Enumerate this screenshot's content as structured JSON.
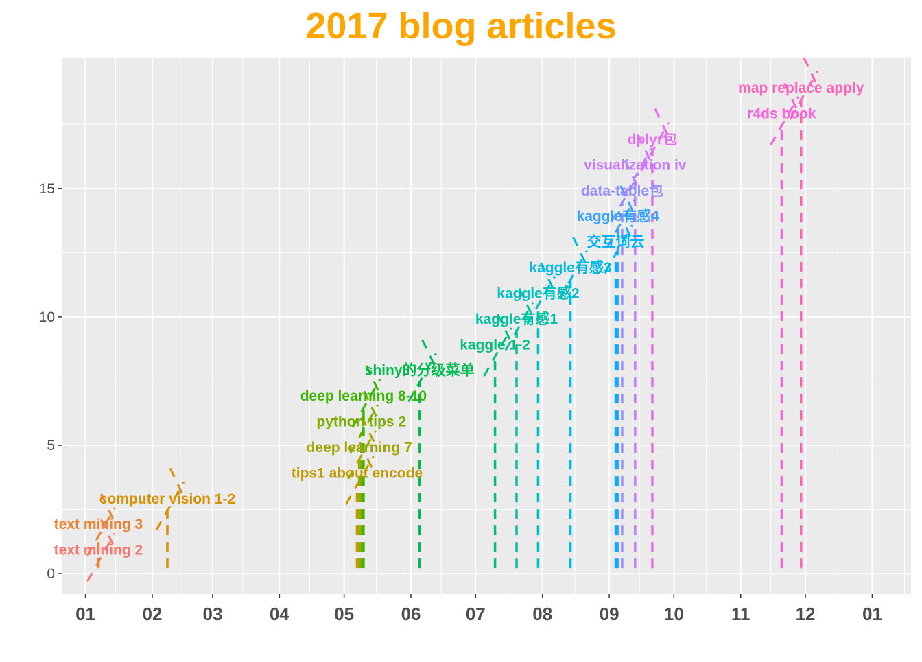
{
  "chart_data": {
    "type": "scatter",
    "title": "2017 blog articles",
    "xlabel": "",
    "ylabel": "",
    "title_color": "#FFA500",
    "panel_background": "#EBEBEB",
    "grid": true,
    "legend": "none",
    "xlim": [
      "2016-12-21",
      "2018-01-19"
    ],
    "ylim": [
      -0.8,
      20.1
    ],
    "y_ticks": [
      0,
      5,
      10,
      15
    ],
    "y_tick_labels": [
      "0",
      "5",
      "10",
      "15"
    ],
    "x_ticks": [
      "2017-01-01",
      "2017-02-01",
      "2017-03-01",
      "2017-04-01",
      "2017-05-01",
      "2017-06-01",
      "2017-07-01",
      "2017-08-01",
      "2017-09-01",
      "2017-10-01",
      "2017-11-01",
      "2017-12-01",
      "2018-01-01"
    ],
    "x_tick_labels": [
      "01",
      "02",
      "03",
      "04",
      "05",
      "06",
      "07",
      "08",
      "09",
      "10",
      "11",
      "12",
      "01"
    ],
    "x_minor_ticks": [
      "2017-01-15",
      "2017-02-14",
      "2017-03-15",
      "2017-04-15",
      "2017-05-16",
      "2017-06-15",
      "2017-07-16",
      "2017-08-16",
      "2017-09-15",
      "2017-10-16",
      "2017-11-15",
      "2017-12-16",
      "2018-01-16"
    ],
    "y_minor_ticks": [
      2.5,
      7.5,
      12.5,
      17.5
    ],
    "points": [
      {
        "label": "text mining 2",
        "date": "2017-01-07",
        "y": 1,
        "color": "#F8766D"
      },
      {
        "label": "text mining 3",
        "date": "2017-01-07",
        "y": 2,
        "color": "#EA8331"
      },
      {
        "label": "computer vision 1-2",
        "date": "2017-02-08",
        "y": 3,
        "color": "#D89000"
      },
      {
        "label": "tips1 about encode",
        "date": "2017-05-07",
        "y": 4,
        "color": "#C09B00"
      },
      {
        "label": "deep learning 7",
        "date": "2017-05-08",
        "y": 5,
        "color": "#A3A500"
      },
      {
        "label": "python tips 2",
        "date": "2017-05-09",
        "y": 6,
        "color": "#7CAE00"
      },
      {
        "label": "deep learning 8-10",
        "date": "2017-05-10",
        "y": 7,
        "color": "#39B600"
      },
      {
        "label": "shiny的分级菜单",
        "date": "2017-06-05",
        "y": 8,
        "color": "#00BB4E"
      },
      {
        "label": "kaggle 1-2",
        "date": "2017-07-10",
        "y": 9,
        "color": "#00BF7D"
      },
      {
        "label": "kaggle有感1",
        "date": "2017-07-20",
        "y": 10,
        "color": "#00C1A3"
      },
      {
        "label": "kaggle有感2",
        "date": "2017-07-30",
        "y": 11,
        "color": "#00BFC4"
      },
      {
        "label": "kaggle有感3",
        "date": "2017-08-14",
        "y": 12,
        "color": "#00BAE0"
      },
      {
        "label": "交互词云",
        "date": "2017-09-04",
        "y": 13,
        "color": "#00B0F6"
      },
      {
        "label": "kaggle有感4",
        "date": "2017-09-05",
        "y": 14,
        "color": "#35A2FF"
      },
      {
        "label": "data-table包",
        "date": "2017-09-07",
        "y": 15,
        "color": "#9590FF"
      },
      {
        "label": "visualization iv",
        "date": "2017-09-13",
        "y": 16,
        "color": "#C77CFF"
      },
      {
        "label": "dplyr包",
        "date": "2017-09-21",
        "y": 17,
        "color": "#E76BF3"
      },
      {
        "label": "r4ds book",
        "date": "2017-11-20",
        "y": 18,
        "color": "#FA62DB"
      },
      {
        "label": "map replace apply",
        "date": "2017-11-29",
        "y": 19,
        "color": "#FF62BC"
      }
    ]
  }
}
